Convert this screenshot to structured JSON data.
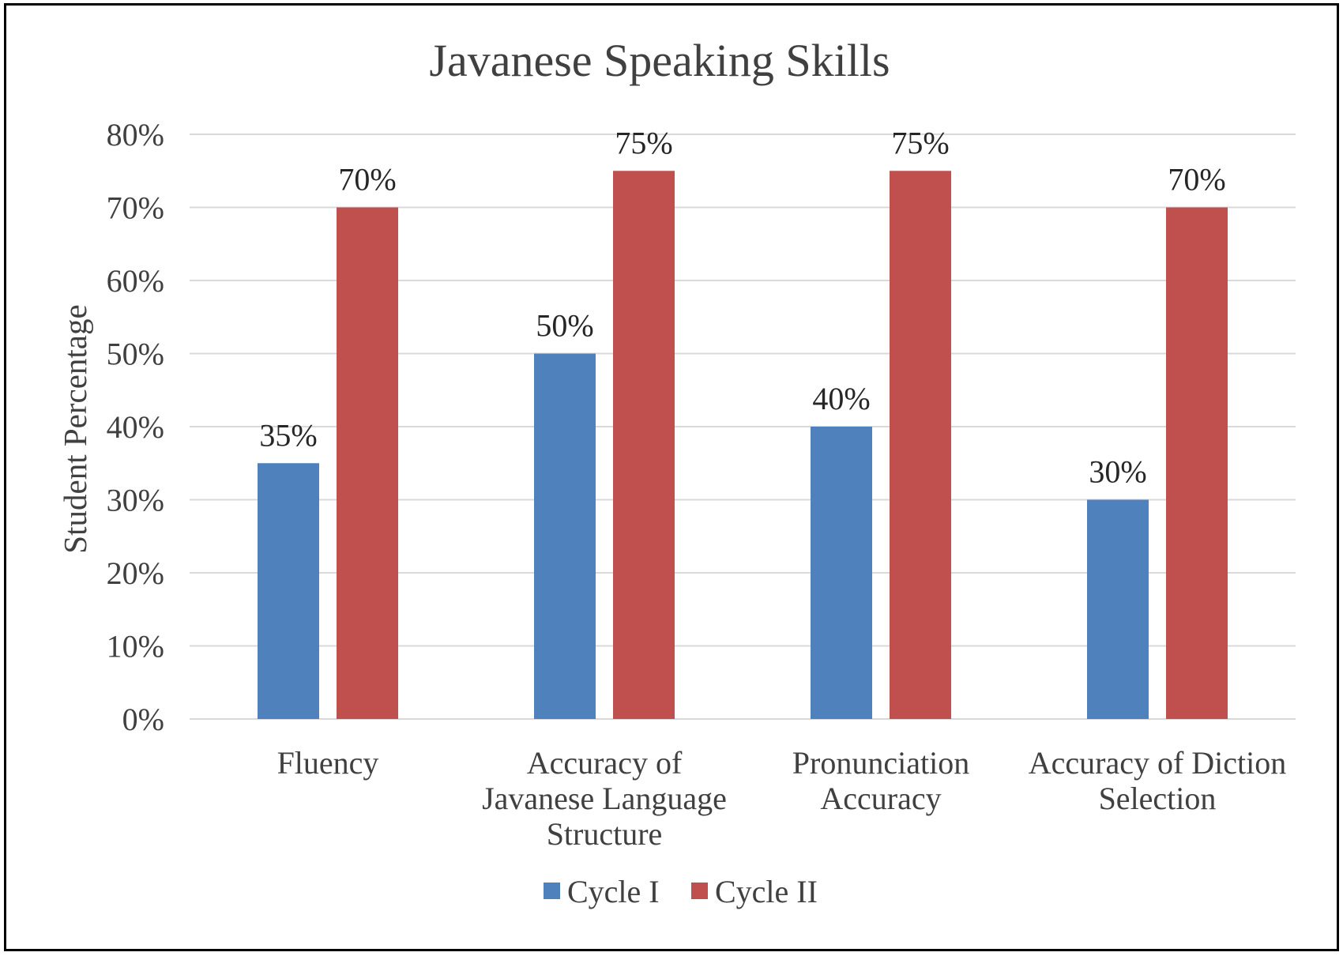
{
  "chart_data": {
    "type": "bar",
    "title": "Javanese Speaking Skills",
    "xlabel": "",
    "ylabel": "Student Percentage",
    "ylim": [
      0,
      80
    ],
    "y_ticks": [
      "0%",
      "10%",
      "20%",
      "30%",
      "40%",
      "50%",
      "60%",
      "70%",
      "80%"
    ],
    "grid": true,
    "legend_position": "bottom",
    "categories": [
      [
        "Fluency"
      ],
      [
        "Accuracy of",
        "Javanese Language",
        "Structure"
      ],
      [
        "Pronunciation",
        "Accuracy"
      ],
      [
        "Accuracy of Diction",
        "Selection"
      ]
    ],
    "series": [
      {
        "name": "Cycle I",
        "color": "#4f81bd",
        "values": [
          35,
          50,
          40,
          30
        ],
        "labels": [
          "35%",
          "50%",
          "40%",
          "30%"
        ]
      },
      {
        "name": "Cycle II",
        "color": "#c0504d",
        "values": [
          70,
          75,
          75,
          70
        ],
        "labels": [
          "70%",
          "75%",
          "75%",
          "70%"
        ]
      }
    ],
    "colors": {
      "text": "#404040",
      "label": "#262626",
      "grid": "#d9d9d9"
    }
  }
}
